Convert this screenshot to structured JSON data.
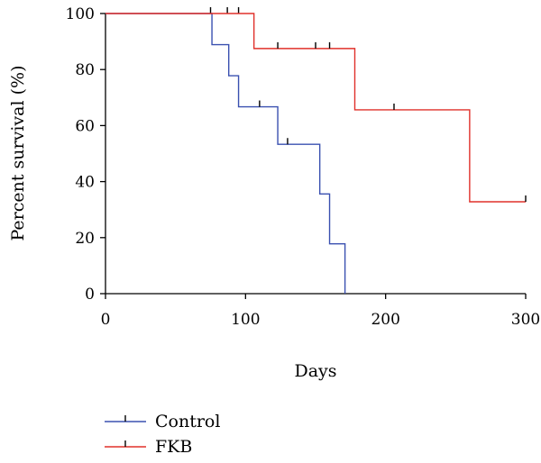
{
  "chart_data": {
    "type": "line",
    "subtype": "kaplan-meier",
    "title": "",
    "xlabel": "Days",
    "ylabel": "Percent survival (%)",
    "xlim": [
      0,
      300
    ],
    "ylim": [
      0,
      100
    ],
    "x_ticks": [
      0,
      100,
      200,
      300
    ],
    "y_ticks": [
      0,
      20,
      40,
      60,
      80,
      100
    ],
    "grid": false,
    "legend_position": "bottom-left",
    "series": [
      {
        "name": "Control",
        "color": "#3a50b0",
        "steps": [
          [
            0,
            100
          ],
          [
            76,
            88.9
          ],
          [
            88,
            77.8
          ],
          [
            95,
            66.7
          ],
          [
            123,
            53.3
          ],
          [
            153,
            35.6
          ],
          [
            160,
            17.8
          ],
          [
            171,
            0
          ]
        ],
        "end_x": 171,
        "censored": [
          [
            75,
            100
          ],
          [
            87,
            100
          ],
          [
            95,
            100
          ],
          [
            110,
            66.7
          ],
          [
            130,
            53.3
          ]
        ]
      },
      {
        "name": "FKB",
        "color": "#e0302a",
        "steps": [
          [
            0,
            100
          ],
          [
            106,
            87.5
          ],
          [
            178,
            65.6
          ],
          [
            260,
            32.8
          ]
        ],
        "end_x": 300,
        "censored": [
          [
            123,
            87.5
          ],
          [
            150,
            87.5
          ],
          [
            160,
            87.5
          ],
          [
            206,
            65.6
          ],
          [
            300,
            32.8
          ]
        ]
      }
    ]
  }
}
